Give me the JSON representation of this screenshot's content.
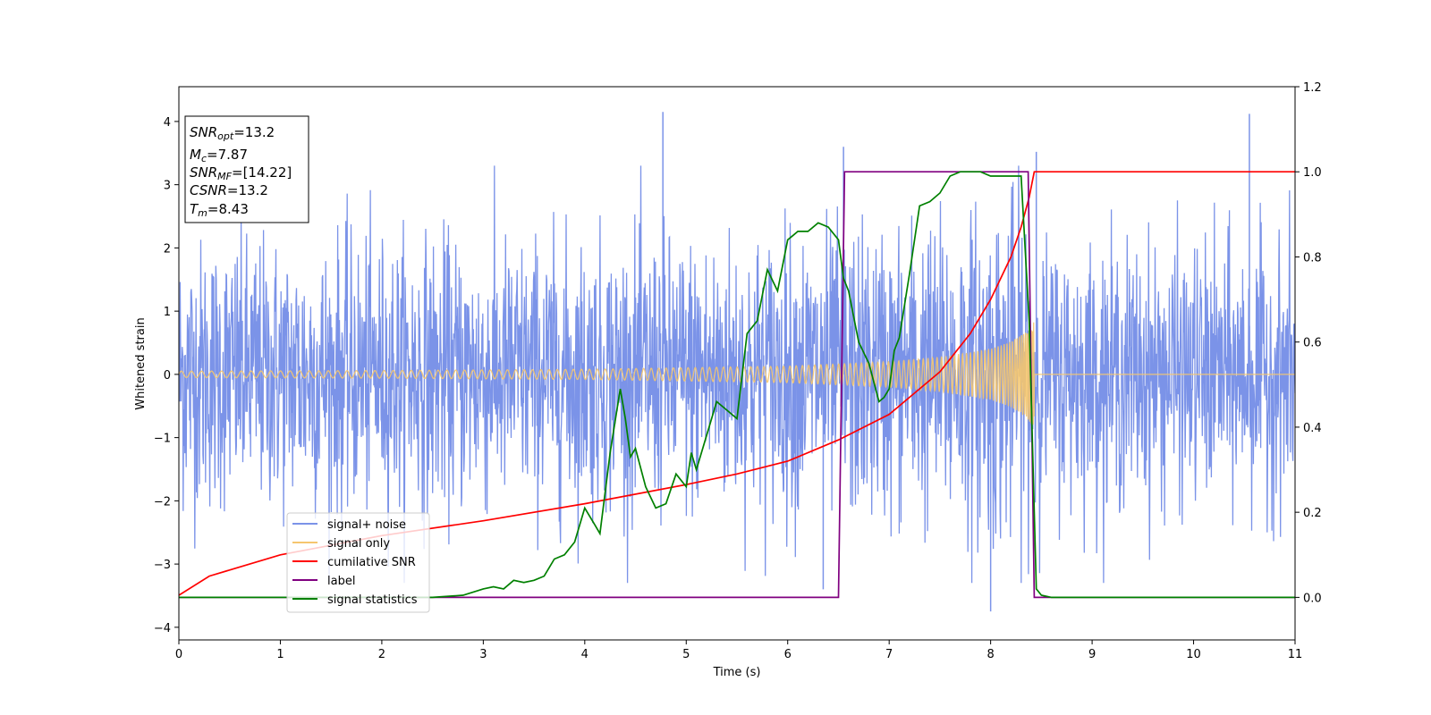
{
  "chart_data": {
    "type": "line",
    "xlabel": "Time (s)",
    "ylabel": "Whitened strain",
    "xlim": [
      0,
      11
    ],
    "ylim": [
      -4.2,
      4.55
    ],
    "y2lim": [
      -0.1,
      1.2
    ],
    "x_ticks": [
      "0",
      "1",
      "2",
      "3",
      "4",
      "5",
      "6",
      "7",
      "8",
      "9",
      "10",
      "11"
    ],
    "y_ticks": [
      "−4",
      "−3",
      "−2",
      "−1",
      "0",
      "1",
      "2",
      "3",
      "4"
    ],
    "y2_ticks": [
      "0.0",
      "0.2",
      "0.4",
      "0.6",
      "0.8",
      "1.0",
      "1.2"
    ],
    "grid": false,
    "legend_position": "lower-left",
    "info_box": {
      "lines": [
        {
          "sym": "SNR",
          "sub": "opt",
          "val": "=13.2"
        },
        {
          "sym": "M",
          "sub": "c",
          "val": "=7.87"
        },
        {
          "sym": "SNR",
          "sub": "MF",
          "val": "=[14.22]"
        },
        {
          "sym": "CSNR",
          "sub": "",
          "val": "=13.2"
        },
        {
          "sym": "T",
          "sub": "m",
          "val": "=8.43"
        }
      ]
    },
    "series": [
      {
        "name": "signal+ noise",
        "color": "#7b93e8",
        "axis": "left",
        "kind": "noise",
        "amplitude_envelope": {
          "x": [
            0,
            4,
            6,
            7,
            7.5,
            8,
            8.2,
            8.35,
            8.43,
            8.5,
            11
          ],
          "y": [
            1.05,
            1.05,
            1.1,
            1.15,
            1.2,
            1.3,
            1.38,
            1.45,
            1.0,
            1.0,
            1.0
          ]
        },
        "notable_peaks": [
          {
            "x": 4.77,
            "y": 4.15
          },
          {
            "x": 10.55,
            "y": 4.12
          },
          {
            "x": 6.55,
            "y": 3.6
          },
          {
            "x": 8.45,
            "y": 3.52
          },
          {
            "x": 8.0,
            "y": -3.75
          },
          {
            "x": 6.35,
            "y": -3.4
          }
        ]
      },
      {
        "name": "signal only",
        "color": "#f5c66e",
        "axis": "left",
        "kind": "chirp",
        "amplitude": {
          "x": [
            0,
            2,
            4,
            6,
            7,
            7.5,
            8,
            8.2,
            8.35,
            8.43
          ],
          "y": [
            0.05,
            0.06,
            0.08,
            0.13,
            0.2,
            0.27,
            0.4,
            0.52,
            0.68,
            0.85
          ]
        },
        "merger_time": 8.43
      },
      {
        "name": "cumilative SNR",
        "color": "#ff0000",
        "axis": "right",
        "x": [
          0,
          0.3,
          1,
          2,
          3,
          4,
          5,
          5.5,
          6,
          6.5,
          7,
          7.5,
          7.8,
          8.0,
          8.2,
          8.3,
          8.38,
          8.43,
          11
        ],
        "y": [
          0.005,
          0.05,
          0.1,
          0.145,
          0.18,
          0.22,
          0.265,
          0.29,
          0.32,
          0.37,
          0.43,
          0.53,
          0.62,
          0.7,
          0.8,
          0.87,
          0.94,
          1.0,
          1.0
        ]
      },
      {
        "name": "label",
        "color": "#800080",
        "axis": "right",
        "x": [
          0,
          6.5,
          6.56,
          8.37,
          8.43,
          11
        ],
        "y": [
          0,
          0,
          1,
          1,
          0,
          0
        ]
      },
      {
        "name": "signal statistics",
        "color": "#008000",
        "axis": "right",
        "x": [
          0,
          0.2,
          0.5,
          1,
          1.5,
          2,
          2.5,
          2.8,
          3,
          3.1,
          3.2,
          3.3,
          3.4,
          3.5,
          3.6,
          3.7,
          3.8,
          3.9,
          4.0,
          4.1,
          4.15,
          4.25,
          4.35,
          4.4,
          4.45,
          4.5,
          4.6,
          4.7,
          4.8,
          4.9,
          5.0,
          5.05,
          5.1,
          5.15,
          5.2,
          5.3,
          5.4,
          5.5,
          5.6,
          5.7,
          5.8,
          5.9,
          6.0,
          6.05,
          6.1,
          6.2,
          6.3,
          6.4,
          6.5,
          6.55,
          6.6,
          6.7,
          6.8,
          6.9,
          6.95,
          7.0,
          7.05,
          7.1,
          7.2,
          7.3,
          7.4,
          7.5,
          7.6,
          7.7,
          7.8,
          7.9,
          8.0,
          8.1,
          8.2,
          8.3,
          8.38,
          8.45,
          8.5,
          8.6,
          9,
          10,
          11
        ],
        "y": [
          0,
          0,
          0,
          0,
          0,
          0,
          0,
          0.005,
          0.02,
          0.025,
          0.02,
          0.04,
          0.035,
          0.04,
          0.05,
          0.09,
          0.1,
          0.13,
          0.21,
          0.17,
          0.15,
          0.34,
          0.49,
          0.42,
          0.33,
          0.35,
          0.26,
          0.21,
          0.22,
          0.29,
          0.26,
          0.34,
          0.3,
          0.34,
          0.38,
          0.46,
          0.44,
          0.42,
          0.62,
          0.65,
          0.77,
          0.72,
          0.84,
          0.85,
          0.86,
          0.86,
          0.88,
          0.87,
          0.84,
          0.75,
          0.72,
          0.6,
          0.55,
          0.46,
          0.47,
          0.49,
          0.58,
          0.61,
          0.76,
          0.92,
          0.93,
          0.95,
          0.99,
          1.0,
          1.0,
          1.0,
          0.99,
          0.99,
          0.99,
          0.99,
          0.65,
          0.02,
          0.005,
          0,
          0,
          0,
          0
        ]
      }
    ]
  }
}
